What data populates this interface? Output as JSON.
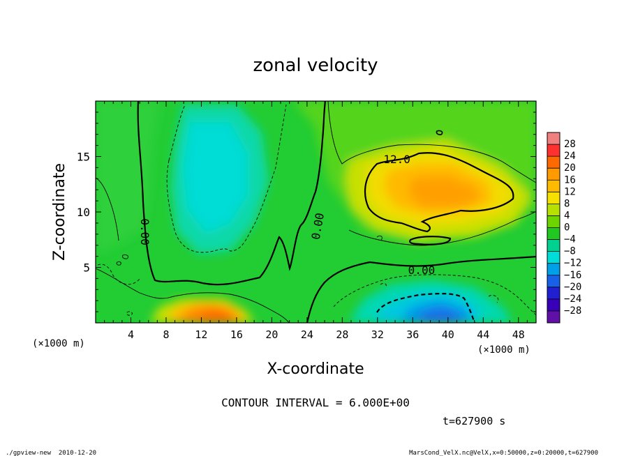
{
  "chart_data": {
    "type": "heatmap",
    "title": "zonal velocity",
    "xlabel": "X-coordinate",
    "ylabel": "Z-coordinate",
    "x_unit_label": "(×1000 m)",
    "x_unit_label_bottom": "(×1000 m)",
    "xlim": [
      0,
      50
    ],
    "ylim": [
      0,
      20
    ],
    "x_ticks": [
      4,
      8,
      12,
      16,
      20,
      24,
      28,
      32,
      36,
      40,
      44,
      48
    ],
    "y_ticks": [
      5,
      10,
      15
    ],
    "contour_interval_text": "CONTOUR INTERVAL = 6.000E+00",
    "contour_labels": [
      {
        "text": "0.00",
        "x": 5.5,
        "z": 8.2,
        "rotate": 90
      },
      {
        "text": "0.00",
        "x": 25.3,
        "z": 8.7,
        "rotate": -80
      },
      {
        "text": "12.0",
        "x": 34.2,
        "z": 14.7,
        "rotate": 0
      },
      {
        "text": "0.00",
        "x": 37.0,
        "z": 4.7,
        "rotate": 0
      }
    ],
    "colorbar": {
      "labels": [
        "28",
        "24",
        "20",
        "16",
        "12",
        "8",
        "4",
        "0",
        "−4",
        "−8",
        "−12",
        "−16",
        "−20",
        "−24",
        "−28"
      ],
      "colors": [
        "#f08080",
        "#ff3030",
        "#ff6a00",
        "#ff9a00",
        "#ffbb00",
        "#f5e000",
        "#b5e000",
        "#6ed400",
        "#20c820",
        "#00d090",
        "#00dcd8",
        "#00a0e8",
        "#1860e8",
        "#2020d0",
        "#3800b8",
        "#6010a8"
      ]
    },
    "series": [
      {
        "feature": "warm core",
        "x": 38,
        "z": 12,
        "value": 16
      },
      {
        "feature": "warm surface blob",
        "x": 13,
        "z": 1,
        "value": 16
      },
      {
        "feature": "cold surface blob",
        "x": 38,
        "z": 1,
        "value": -14
      },
      {
        "feature": "cold column",
        "x": 13,
        "z": 13,
        "value": -8
      }
    ]
  },
  "time_text": "t=627900 s",
  "footer_left": "./gpview-new  2010-12-20",
  "footer_right": "MarsCond_VelX.nc@VelX,x=0:50000,z=0:20000,t=627900"
}
